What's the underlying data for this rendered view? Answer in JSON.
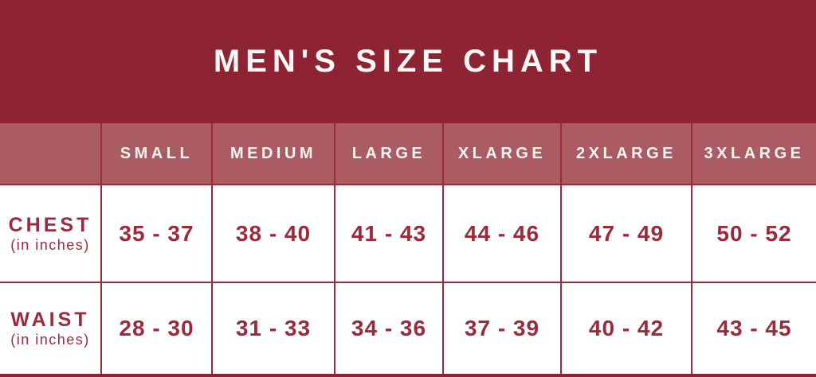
{
  "title": "MEN'S SIZE CHART",
  "colors": {
    "band_maroon": "#8e2334",
    "header_rose": "#ab5c62",
    "grid_line_red": "#9b2b3c",
    "text_red": "#9b2b3c",
    "text_white": "#fcf9f7",
    "cell_white": "#ffffff"
  },
  "chart_data": {
    "type": "table",
    "title": "MEN'S SIZE CHART",
    "columns": [
      "SMALL",
      "MEDIUM",
      "LARGE",
      "XLARGE",
      "2XLARGE",
      "3XLARGE"
    ],
    "rows": [
      {
        "label": "CHEST",
        "sublabel": "(in inches)",
        "values": [
          "35 - 37",
          "38 - 40",
          "41 - 43",
          "44 - 46",
          "47 - 49",
          "50 - 52"
        ]
      },
      {
        "label": "WAIST",
        "sublabel": "(in inches)",
        "values": [
          "28 - 30",
          "31 - 33",
          "34 - 36",
          "37 - 39",
          "40 - 42",
          "43 - 45"
        ]
      }
    ]
  }
}
